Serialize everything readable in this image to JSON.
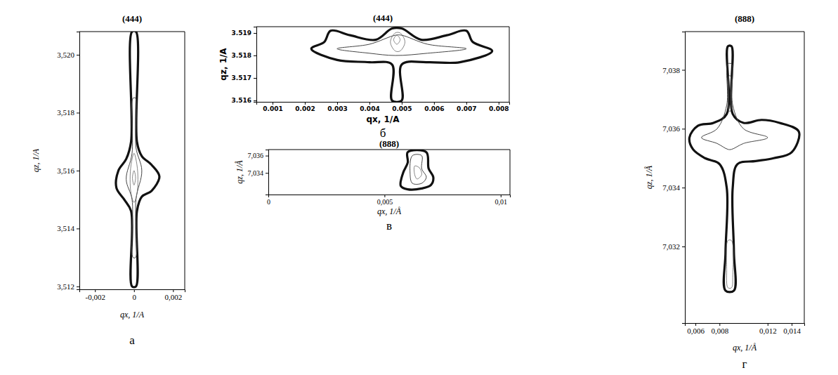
{
  "chart_data": [
    {
      "type": "contour",
      "title": "(444)",
      "panel_label": "а",
      "x_label": "qx, 1/A",
      "y_label": "qz, 1/A",
      "xlim": [
        -0.0028,
        0.0026
      ],
      "ylim": [
        3.5119,
        3.5208
      ],
      "xticks": [
        {
          "value": -0.002,
          "label": "-0,002"
        },
        0,
        {
          "value": 0.002,
          "label": "0,002"
        }
      ],
      "yticks": [
        {
          "value": 3.512,
          "label": "3,512"
        },
        {
          "value": 3.514,
          "label": "3,514"
        },
        {
          "value": 3.516,
          "label": "3,516"
        },
        {
          "value": 3.518,
          "label": "3,518"
        },
        {
          "value": 3.52,
          "label": "3,520"
        }
      ],
      "contours": [
        {
          "x": [
            -0.0001,
            0.0001,
            0.00015,
            0.0004,
            0.0009,
            0.0013,
            0.0009,
            0.0004,
            0.00015,
            0.0001,
            -0.0001,
            -0.00015,
            -0.0005,
            -0.0009,
            -0.0008,
            -0.0004,
            -0.00015
          ],
          "y": [
            3.5208,
            3.5208,
            3.517,
            3.5165,
            3.5162,
            3.5158,
            3.5153,
            3.5151,
            3.5146,
            3.512,
            3.512,
            3.5146,
            3.515,
            3.5154,
            3.516,
            3.5164,
            3.517
          ]
        },
        {
          "x": [
            -5e-05,
            8e-05,
            0.0001,
            0.0004,
            0.0001,
            8e-05,
            -5e-05,
            -0.0001,
            -0.0004,
            -0.0001
          ],
          "y": [
            3.5185,
            3.5185,
            3.5168,
            3.516,
            3.515,
            3.513,
            3.513,
            3.515,
            3.5157,
            3.5166
          ]
        },
        {
          "x": [
            0,
            0.00015,
            0.0002,
            0.00015,
            0,
            -0.00015,
            -0.0002,
            -0.00015
          ],
          "y": [
            3.5166,
            3.5162,
            3.5157,
            3.5152,
            3.5149,
            3.5152,
            3.5157,
            3.5162
          ]
        },
        {
          "x": [
            0,
            8e-05,
            0,
            -8e-05
          ],
          "y": [
            3.516,
            3.51575,
            3.5155,
            3.51575
          ]
        }
      ]
    },
    {
      "type": "contour",
      "title": "(444)",
      "panel_label": "б",
      "x_label": "qx, 1/A",
      "y_label": "qz, 1/A",
      "xlim": [
        0.0005,
        0.00833
      ],
      "ylim": [
        3.51594,
        3.51928
      ],
      "xticks": [
        0.001,
        0.002,
        0.003,
        0.004,
        0.005,
        0.006,
        0.007,
        0.008
      ],
      "yticks": [
        3.516,
        3.517,
        3.518,
        3.519
      ],
      "contours": [
        {
          "x": [
            0.0047,
            0.005,
            0.005,
            0.0058,
            0.0068,
            0.0078,
            0.0072,
            0.007,
            0.0064,
            0.0056,
            0.005,
            0.0047,
            0.0042,
            0.0034,
            0.0028,
            0.0026,
            0.0022,
            0.003,
            0.004,
            0.0047
          ],
          "y": [
            3.516,
            3.516,
            3.5176,
            3.5177,
            3.5177,
            3.5182,
            3.5186,
            3.5191,
            3.5189,
            3.5187,
            3.5192,
            3.5192,
            3.5187,
            3.5189,
            3.5191,
            3.5186,
            3.5183,
            3.5178,
            3.5177,
            3.5176
          ]
        },
        {
          "x": [
            0.003,
            0.004,
            0.0048,
            0.0058,
            0.007,
            0.0058,
            0.005,
            0.0048,
            0.004
          ],
          "y": [
            3.5183,
            3.5181,
            3.518,
            3.5181,
            3.5183,
            3.5185,
            3.5189,
            3.5189,
            3.5185
          ]
        },
        {
          "x": [
            0.0048,
            0.00495,
            0.0051,
            0.00495,
            0.0048,
            0.00465
          ],
          "y": [
            3.519,
            3.519,
            3.5186,
            3.5182,
            3.5182,
            3.5186
          ]
        },
        {
          "x": [
            0.00485,
            0.00495,
            0.00485,
            0.00475
          ],
          "y": [
            3.5189,
            3.5187,
            3.5185,
            3.5187
          ]
        }
      ]
    },
    {
      "type": "contour",
      "title": "(888)",
      "panel_label": "в",
      "x_label": "qx, 1/Å",
      "y_label": "qz, 1/Å",
      "xlim": [
        0,
        0.0104
      ],
      "ylim": [
        7.0315,
        7.0367
      ],
      "xticks": [
        0,
        {
          "value": 0.005,
          "label": "0,005"
        },
        {
          "value": 0.01,
          "label": "0,01"
        }
      ],
      "yticks": [
        {
          "value": 7.034,
          "label": "7,034"
        },
        {
          "value": 7.036,
          "label": "7,036"
        }
      ],
      "contours": [
        {
          "x": [
            0.006,
            0.0068,
            0.0069,
            0.0071,
            0.007,
            0.0066,
            0.006,
            0.0057,
            0.0058,
            0.006
          ],
          "y": [
            7.0364,
            7.0364,
            7.0345,
            7.0335,
            7.0326,
            7.0322,
            7.0321,
            7.0325,
            7.034,
            7.0352
          ]
        },
        {
          "x": [
            0.0062,
            0.0066,
            0.0066,
            0.0068,
            0.0066,
            0.0062,
            0.0061
          ],
          "y": [
            7.036,
            7.036,
            7.0345,
            7.0335,
            7.0328,
            7.0328,
            7.034
          ]
        },
        {
          "x": [
            0.0063,
            0.0065,
            0.0066,
            0.0064,
            0.0063
          ],
          "y": [
            7.0348,
            7.0346,
            7.0338,
            7.0333,
            7.0338
          ]
        }
      ]
    },
    {
      "type": "contour",
      "title": "(888)",
      "panel_label": "г",
      "x_label": "qx, 1/Å",
      "y_label": "qz, 1/Å",
      "xlim": [
        0.00512,
        0.01505
      ],
      "ylim": [
        7.0294,
        7.0393
      ],
      "xticks": [
        {
          "value": 0.006,
          "label": "0,006"
        },
        {
          "value": 0.008,
          "label": "0,008"
        },
        {
          "value": 0.012,
          "label": "0,012"
        },
        {
          "value": 0.014,
          "label": "0,014"
        }
      ],
      "yticks": [
        {
          "value": 7.032,
          "label": "7,032"
        },
        {
          "value": 7.034,
          "label": "7,034"
        },
        {
          "value": 7.036,
          "label": "7,036"
        },
        {
          "value": 7.038,
          "label": "7,038"
        }
      ],
      "contours": [
        {
          "x": [
            0.0087,
            0.009,
            0.0091,
            0.01,
            0.0115,
            0.013,
            0.0146,
            0.014,
            0.0125,
            0.011,
            0.0095,
            0.0091,
            0.0092,
            0.0092,
            0.0085,
            0.0085,
            0.0086,
            0.008,
            0.0068,
            0.0058,
            0.0055,
            0.0062,
            0.0075,
            0.0086
          ],
          "y": [
            7.0388,
            7.0388,
            7.0365,
            7.0362,
            7.0363,
            7.0362,
            7.0359,
            7.0352,
            7.035,
            7.0349,
            7.0348,
            7.034,
            7.0318,
            7.0305,
            7.0305,
            7.0318,
            7.034,
            7.0348,
            7.035,
            7.0353,
            7.0357,
            7.0361,
            7.0362,
            7.0365
          ]
        },
        {
          "x": [
            0.0087,
            0.009,
            0.0091,
            0.01,
            0.012,
            0.01,
            0.009,
            0.0087,
            0.0078,
            0.0065,
            0.0078,
            0.0086
          ],
          "y": [
            7.0382,
            7.0382,
            7.0368,
            7.036,
            7.0357,
            7.0355,
            7.0353,
            7.0353,
            7.0355,
            7.0357,
            7.036,
            7.0368
          ]
        },
        {
          "x": [
            0.0088,
            0.0089,
            0.00895,
            0.0089,
            0.0088,
            0.00875
          ],
          "y": [
            7.0378,
            7.0378,
            7.0372,
            7.0366,
            7.0366,
            7.0372
          ]
        },
        {
          "x": [
            0.0087,
            0.009,
            0.0091,
            0.009,
            0.0087,
            0.0086
          ],
          "y": [
            7.0322,
            7.0322,
            7.031,
            7.0306,
            7.0306,
            7.0312
          ]
        }
      ]
    }
  ]
}
